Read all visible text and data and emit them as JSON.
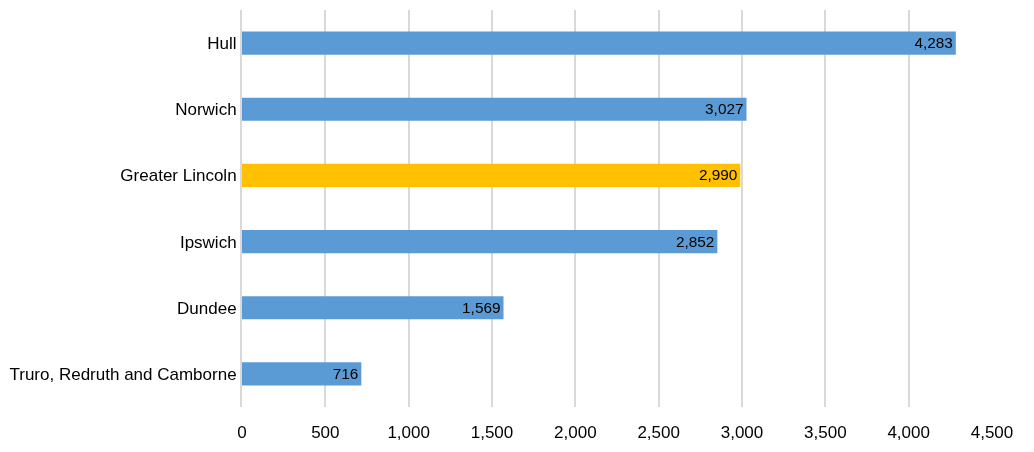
{
  "chart_data": {
    "type": "bar",
    "orientation": "horizontal",
    "categories": [
      "Hull",
      "Norwich",
      "Greater Lincoln",
      "Ipswich",
      "Dundee",
      "Truro, Redruth and Camborne"
    ],
    "values": [
      4283,
      3027,
      2990,
      2852,
      1569,
      716
    ],
    "colors": [
      "#5b9bd5",
      "#5b9bd5",
      "#ffc000",
      "#5b9bd5",
      "#5b9bd5",
      "#5b9bd5"
    ],
    "value_labels": [
      "4,283",
      "3,027",
      "2,990",
      "2,852",
      "1,569",
      "716"
    ],
    "xlim": [
      0,
      4500
    ],
    "xticks": [
      0,
      500,
      {
        "value": 1000,
        "label": "1,000"
      },
      {
        "value": 1500,
        "label": "1,500"
      },
      {
        "value": 2000,
        "label": "2,000"
      },
      {
        "value": 2500,
        "label": "2,500"
      },
      {
        "value": 3000,
        "label": "3,000"
      },
      {
        "value": 3500,
        "label": "3,500"
      },
      {
        "value": 4000,
        "label": "4,000"
      },
      {
        "value": 4500,
        "label": "4,500"
      }
    ],
    "grid": "x"
  }
}
